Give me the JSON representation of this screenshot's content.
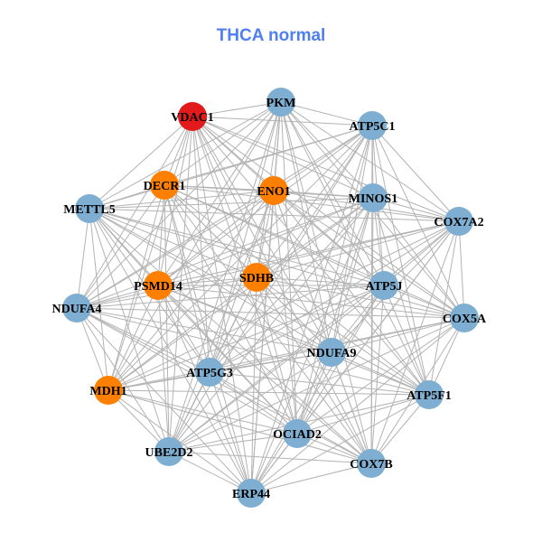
{
  "title": "THCA normal",
  "colors": {
    "default": "#7eaed1",
    "orange": "#ff7f00",
    "red": "#e31a1c",
    "edge": "#b3b3b3",
    "title": "#4f7ff0"
  },
  "nodes": [
    {
      "id": "VDAC1",
      "group": "red"
    },
    {
      "id": "PKM",
      "group": "default"
    },
    {
      "id": "ATP5C1",
      "group": "default"
    },
    {
      "id": "DECR1",
      "group": "orange"
    },
    {
      "id": "ENO1",
      "group": "orange"
    },
    {
      "id": "MINOS1",
      "group": "default"
    },
    {
      "id": "METTL5",
      "group": "default"
    },
    {
      "id": "COX7A2",
      "group": "default"
    },
    {
      "id": "PSMD14",
      "group": "orange"
    },
    {
      "id": "SDHB",
      "group": "orange"
    },
    {
      "id": "ATP5J",
      "group": "default"
    },
    {
      "id": "NDUFA4",
      "group": "default"
    },
    {
      "id": "COX5A",
      "group": "default"
    },
    {
      "id": "NDUFA9",
      "group": "default"
    },
    {
      "id": "ATP5G3",
      "group": "default"
    },
    {
      "id": "MDH1",
      "group": "orange"
    },
    {
      "id": "ATP5F1",
      "group": "default"
    },
    {
      "id": "OCIAD2",
      "group": "default"
    },
    {
      "id": "UBE2D2",
      "group": "default"
    },
    {
      "id": "COX7B",
      "group": "default"
    },
    {
      "id": "ERP44",
      "group": "default"
    }
  ]
}
